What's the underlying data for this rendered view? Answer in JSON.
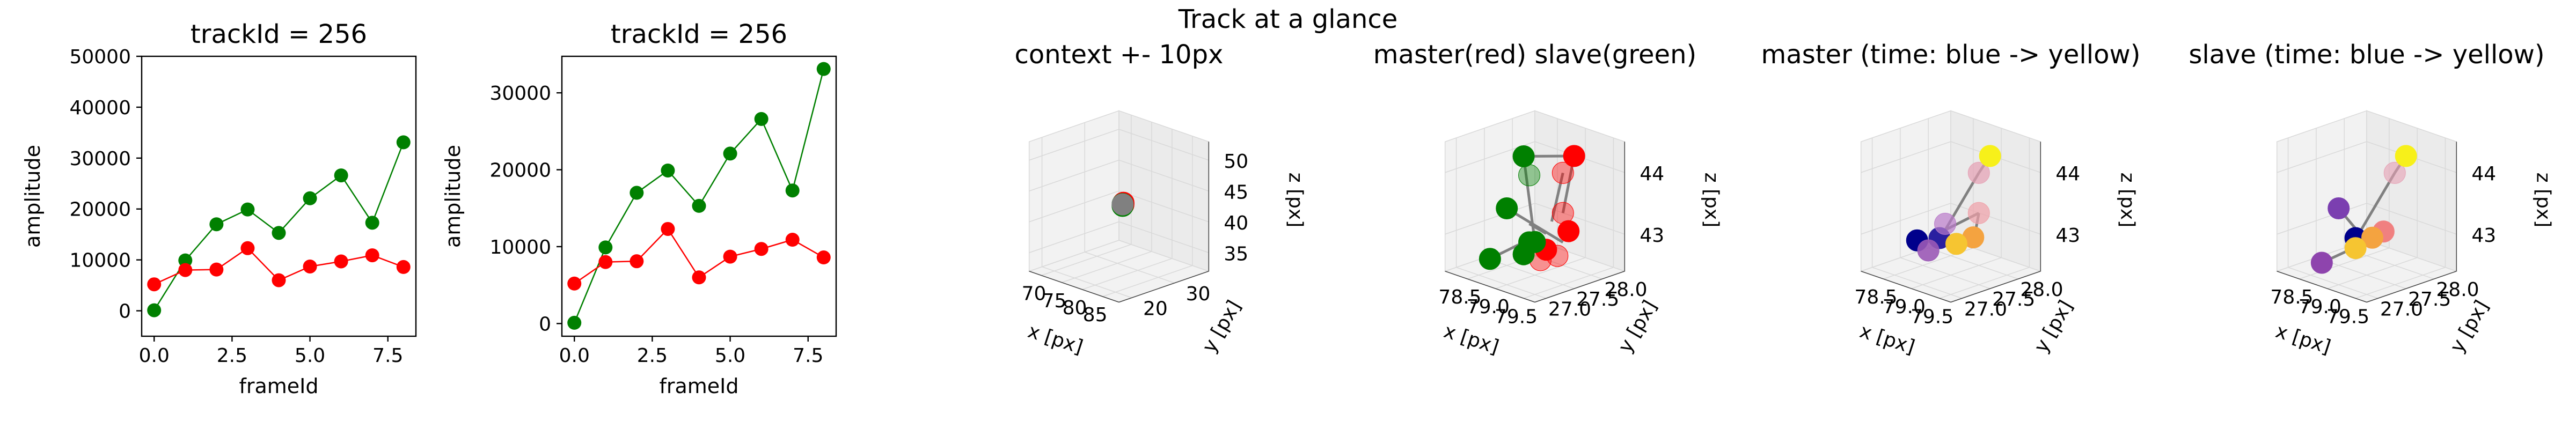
{
  "suptitle": "Track at a glance",
  "colors": {
    "master": "#ff0000",
    "slave": "#008000",
    "connector": "#808080",
    "axis": "#000000",
    "pane": "#f2f2f2",
    "pane_grid": "#d9d9d9"
  },
  "chart_data": [
    {
      "type": "line",
      "title": "trackId = 256",
      "xlabel": "frameId",
      "ylabel": "amplitude",
      "xlim": [
        -0.4,
        8.4
      ],
      "ylim": [
        -5000,
        50000
      ],
      "xticks": [
        0.0,
        2.5,
        5.0,
        7.5
      ],
      "xticklabels": [
        "0.0",
        "2.5",
        "5.0",
        "7.5"
      ],
      "yticks": [
        0,
        10000,
        20000,
        30000,
        40000,
        50000
      ],
      "yticklabels": [
        "0",
        "10000",
        "20000",
        "30000",
        "40000",
        "50000"
      ],
      "x": [
        0,
        1,
        2,
        3,
        4,
        5,
        6,
        7,
        8
      ],
      "series": [
        {
          "color": "#008000",
          "values": [
            100,
            9900,
            17000,
            19900,
            15300,
            22100,
            26600,
            17300,
            33100
          ]
        },
        {
          "color": "#ff0000",
          "values": [
            5200,
            8000,
            8100,
            12300,
            6000,
            8700,
            9700,
            10900,
            8600
          ]
        }
      ]
    },
    {
      "type": "line",
      "title": "trackId = 256",
      "xlabel": "frameId",
      "ylabel": "amplitude",
      "xlim": [
        -0.4,
        8.4
      ],
      "ylim": [
        -1650,
        34750
      ],
      "xticks": [
        0.0,
        2.5,
        5.0,
        7.5
      ],
      "xticklabels": [
        "0.0",
        "2.5",
        "5.0",
        "7.5"
      ],
      "yticks": [
        0,
        10000,
        20000,
        30000
      ],
      "yticklabels": [
        "0",
        "10000",
        "20000",
        "30000"
      ],
      "x": [
        0,
        1,
        2,
        3,
        4,
        5,
        6,
        7,
        8
      ],
      "series": [
        {
          "color": "#008000",
          "values": [
            100,
            9900,
            17000,
            19900,
            15300,
            22100,
            26600,
            17300,
            33100
          ]
        },
        {
          "color": "#ff0000",
          "values": [
            5200,
            8000,
            8100,
            12300,
            6000,
            8700,
            9700,
            10900,
            8600
          ]
        }
      ]
    },
    {
      "type": "scatter3d",
      "title": "context +- 10px",
      "xlabel": "x [px]",
      "ylabel": "y [px]",
      "zlabel": "z [px]",
      "xlim": [
        67,
        89
      ],
      "ylim": [
        17,
        38
      ],
      "zlim": [
        32,
        53
      ],
      "xticks": [
        70,
        75,
        80,
        85
      ],
      "yticks": [
        20,
        30
      ],
      "zticks": [
        35,
        40,
        45,
        50
      ],
      "points": [
        {
          "x": 79.0,
          "y": 27.6,
          "z": 43.3,
          "color": "#ff0000"
        },
        {
          "x": 79.2,
          "y": 27.4,
          "z": 43.1,
          "color": "#ff0000"
        },
        {
          "x": 78.7,
          "y": 27.7,
          "z": 43.0,
          "color": "#008000"
        },
        {
          "x": 78.9,
          "y": 27.5,
          "z": 42.8,
          "color": "#008000"
        },
        {
          "x": 78.8,
          "y": 27.6,
          "z": 43.0,
          "color": "#808080"
        }
      ]
    },
    {
      "type": "scatter3d",
      "title": "master(red) slave(green)",
      "xlabel": "x [px]",
      "ylabel": "y [px]",
      "zlabel": "z [px]",
      "xlim": [
        78.1,
        79.7
      ],
      "ylim": [
        26.8,
        28.4
      ],
      "zlim": [
        42.4,
        44.5
      ],
      "xticks": [
        78.5,
        79.0,
        79.5
      ],
      "xticklabels": [
        "78.5",
        "79.0",
        "79.5"
      ],
      "yticks": [
        27.0,
        27.5,
        28.0
      ],
      "yticklabels": [
        "27.0",
        "27.5",
        "28.0"
      ],
      "zticks": [
        43,
        44
      ],
      "segments": [
        [
          {
            "x": 78.7,
            "y": 27.6,
            "z": 44.2
          },
          {
            "x": 79.3,
            "y": 27.9,
            "z": 44.3
          }
        ],
        [
          {
            "x": 78.7,
            "y": 27.6,
            "z": 44.2
          },
          {
            "x": 79.1,
            "y": 27.4,
            "z": 43.0
          }
        ],
        [
          {
            "x": 78.3,
            "y": 27.7,
            "z": 43.2
          },
          {
            "x": 79.2,
            "y": 27.8,
            "z": 42.9
          }
        ],
        [
          {
            "x": 78.5,
            "y": 27.2,
            "z": 42.6
          },
          {
            "x": 79.1,
            "y": 27.5,
            "z": 43.1
          }
        ],
        [
          {
            "x": 79.0,
            "y": 28.0,
            "z": 43.9
          },
          {
            "x": 79.2,
            "y": 27.6,
            "z": 43.3
          }
        ],
        [
          {
            "x": 78.9,
            "y": 27.5,
            "z": 43.2
          },
          {
            "x": 79.3,
            "y": 27.4,
            "z": 43.2
          }
        ],
        [
          {
            "x": 79.3,
            "y": 27.9,
            "z": 44.3
          },
          {
            "x": 79.4,
            "y": 27.6,
            "z": 43.5
          }
        ]
      ],
      "points": [
        {
          "x": 79.3,
          "y": 27.9,
          "z": 44.3,
          "color": "#ff0000",
          "alpha": 1.0
        },
        {
          "x": 79.0,
          "y": 28.0,
          "z": 43.9,
          "color": "#ff0000",
          "alpha": 0.4
        },
        {
          "x": 79.4,
          "y": 27.6,
          "z": 43.5,
          "color": "#ff0000",
          "alpha": 0.4
        },
        {
          "x": 79.6,
          "y": 27.5,
          "z": 43.3,
          "color": "#ff0000",
          "alpha": 1.0
        },
        {
          "x": 79.4,
          "y": 27.3,
          "z": 43.0,
          "color": "#ff0000",
          "alpha": 1.0
        },
        {
          "x": 79.5,
          "y": 27.4,
          "z": 42.9,
          "color": "#ff0000",
          "alpha": 0.4
        },
        {
          "x": 79.3,
          "y": 27.3,
          "z": 42.8,
          "color": "#ff0000",
          "alpha": 0.4
        },
        {
          "x": 78.7,
          "y": 27.6,
          "z": 44.2,
          "color": "#008000",
          "alpha": 1.0
        },
        {
          "x": 78.6,
          "y": 27.8,
          "z": 43.8,
          "color": "#008000",
          "alpha": 0.4
        },
        {
          "x": 78.3,
          "y": 27.7,
          "z": 43.2,
          "color": "#008000",
          "alpha": 1.0
        },
        {
          "x": 79.1,
          "y": 27.4,
          "z": 43.0,
          "color": "#008000",
          "alpha": 1.0
        },
        {
          "x": 78.9,
          "y": 27.5,
          "z": 42.9,
          "color": "#008000",
          "alpha": 1.0
        },
        {
          "x": 79.0,
          "y": 27.3,
          "z": 42.8,
          "color": "#008000",
          "alpha": 1.0
        },
        {
          "x": 78.5,
          "y": 27.2,
          "z": 42.6,
          "color": "#008000",
          "alpha": 1.0
        }
      ]
    },
    {
      "type": "scatter3d",
      "title": "master (time: blue -> yellow)",
      "xlabel": "x [px]",
      "ylabel": "y [px]",
      "zlabel": "z [px]",
      "xlim": [
        78.1,
        79.7
      ],
      "ylim": [
        26.8,
        28.4
      ],
      "zlim": [
        42.4,
        44.5
      ],
      "xticks": [
        78.5,
        79.0,
        79.5
      ],
      "xticklabels": [
        "78.5",
        "79.0",
        "79.5"
      ],
      "yticks": [
        27.0,
        27.5,
        28.0
      ],
      "yticklabels": [
        "27.0",
        "27.5",
        "28.0"
      ],
      "zticks": [
        43,
        44
      ],
      "segments": [
        [
          {
            "x": 79.3,
            "y": 27.9,
            "z": 44.3
          },
          {
            "x": 79.0,
            "y": 28.0,
            "z": 43.9
          }
        ],
        [
          {
            "x": 79.0,
            "y": 28.0,
            "z": 43.9
          },
          {
            "x": 78.9,
            "y": 27.5,
            "z": 43.1
          }
        ],
        [
          {
            "x": 78.9,
            "y": 27.5,
            "z": 43.1
          },
          {
            "x": 79.4,
            "y": 27.6,
            "z": 43.5
          }
        ],
        [
          {
            "x": 79.4,
            "y": 27.6,
            "z": 43.5
          },
          {
            "x": 79.5,
            "y": 27.4,
            "z": 43.1
          }
        ],
        [
          {
            "x": 78.8,
            "y": 27.4,
            "z": 43.0
          },
          {
            "x": 79.2,
            "y": 27.4,
            "z": 43.0
          }
        ],
        [
          {
            "x": 79.2,
            "y": 27.4,
            "z": 43.0
          },
          {
            "x": 78.6,
            "y": 27.3,
            "z": 42.9
          }
        ]
      ],
      "points": [
        {
          "x": 78.6,
          "y": 27.3,
          "z": 42.9,
          "color": "#00008b",
          "alpha": 1.0
        },
        {
          "x": 78.9,
          "y": 27.4,
          "z": 43.0,
          "color": "#2a1fa0",
          "alpha": 1.0
        },
        {
          "x": 78.8,
          "y": 27.3,
          "z": 42.8,
          "color": "#9b59b6",
          "alpha": 0.9
        },
        {
          "x": 78.9,
          "y": 27.5,
          "z": 43.2,
          "color": "#b97ac9",
          "alpha": 0.7
        },
        {
          "x": 79.0,
          "y": 28.0,
          "z": 43.9,
          "color": "#e6a0b4",
          "alpha": 0.7
        },
        {
          "x": 79.4,
          "y": 27.6,
          "z": 43.5,
          "color": "#f0a0a8",
          "alpha": 0.7
        },
        {
          "x": 79.5,
          "y": 27.4,
          "z": 43.2,
          "color": "#f4a340",
          "alpha": 1.0
        },
        {
          "x": 79.2,
          "y": 27.4,
          "z": 43.0,
          "color": "#f6c531",
          "alpha": 1.0
        },
        {
          "x": 79.3,
          "y": 27.9,
          "z": 44.3,
          "color": "#f7f01a",
          "alpha": 1.0
        }
      ]
    },
    {
      "type": "scatter3d",
      "title": "slave (time: blue -> yellow)",
      "xlabel": "x [px]",
      "ylabel": "y [px]",
      "zlabel": "z [px]",
      "xlim": [
        78.1,
        79.7
      ],
      "ylim": [
        26.8,
        28.4
      ],
      "zlim": [
        42.4,
        44.5
      ],
      "xticks": [
        78.5,
        79.0,
        79.5
      ],
      "xticklabels": [
        "78.5",
        "79.0",
        "79.5"
      ],
      "yticks": [
        27.0,
        27.5,
        28.0
      ],
      "yticklabels": [
        "27.0",
        "27.5",
        "28.0"
      ],
      "zticks": [
        43,
        44
      ],
      "segments": [
        [
          {
            "x": 79.3,
            "y": 27.9,
            "z": 44.3
          },
          {
            "x": 79.0,
            "y": 28.0,
            "z": 43.9
          }
        ],
        [
          {
            "x": 79.0,
            "y": 28.0,
            "z": 43.9
          },
          {
            "x": 78.9,
            "y": 27.5,
            "z": 43.1
          }
        ],
        [
          {
            "x": 78.3,
            "y": 27.7,
            "z": 43.2
          },
          {
            "x": 79.1,
            "y": 27.4,
            "z": 43.0
          }
        ],
        [
          {
            "x": 78.6,
            "y": 27.1,
            "z": 42.6
          },
          {
            "x": 79.1,
            "y": 27.4,
            "z": 43.0
          }
        ],
        [
          {
            "x": 79.1,
            "y": 27.4,
            "z": 43.0
          },
          {
            "x": 79.4,
            "y": 27.5,
            "z": 43.2
          }
        ]
      ],
      "points": [
        {
          "x": 78.3,
          "y": 27.7,
          "z": 43.2,
          "color": "#7b3fb0",
          "alpha": 1.0
        },
        {
          "x": 78.6,
          "y": 27.1,
          "z": 42.6,
          "color": "#8e44ad",
          "alpha": 1.0
        },
        {
          "x": 78.9,
          "y": 27.4,
          "z": 43.0,
          "color": "#00008b",
          "alpha": 1.0
        },
        {
          "x": 79.0,
          "y": 28.0,
          "z": 43.9,
          "color": "#e6a0b4",
          "alpha": 0.6
        },
        {
          "x": 79.3,
          "y": 27.5,
          "z": 43.2,
          "color": "#f08080",
          "alpha": 1.0
        },
        {
          "x": 79.2,
          "y": 27.4,
          "z": 43.1,
          "color": "#f4a340",
          "alpha": 1.0
        },
        {
          "x": 79.0,
          "y": 27.3,
          "z": 42.9,
          "color": "#f6c531",
          "alpha": 1.0
        },
        {
          "x": 79.3,
          "y": 27.9,
          "z": 44.3,
          "color": "#f7f01a",
          "alpha": 1.0
        }
      ]
    }
  ]
}
